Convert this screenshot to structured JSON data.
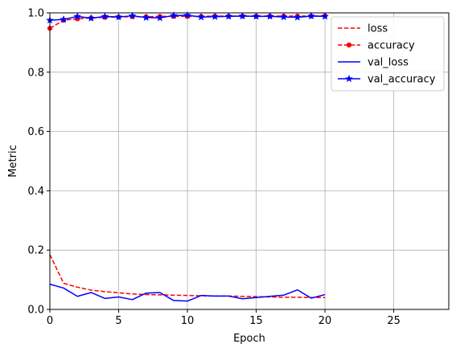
{
  "chart_data": {
    "type": "line",
    "xlabel": "Epoch",
    "ylabel": "Metric",
    "xlim": [
      0,
      29
    ],
    "ylim": [
      0,
      1
    ],
    "xticks": [
      0,
      5,
      10,
      15,
      20,
      25
    ],
    "yticks": [
      0.0,
      0.2,
      0.4,
      0.6,
      0.8,
      1.0
    ],
    "xtick_labels": [
      "0",
      "5",
      "10",
      "15",
      "20",
      "25"
    ],
    "ytick_labels": [
      "0.0",
      "0.2",
      "0.4",
      "0.6",
      "0.8",
      "1.0"
    ],
    "grid": true,
    "legend_position": "top-right",
    "x": [
      0,
      1,
      2,
      3,
      4,
      5,
      6,
      7,
      8,
      9,
      10,
      11,
      12,
      13,
      14,
      15,
      16,
      17,
      18,
      19,
      20
    ],
    "series": [
      {
        "name": "loss",
        "color": "#ff0000",
        "style": "dashed",
        "marker": "none",
        "values": [
          0.185,
          0.088,
          0.075,
          0.065,
          0.06,
          0.056,
          0.052,
          0.05,
          0.049,
          0.048,
          0.047,
          0.046,
          0.045,
          0.045,
          0.044,
          0.043,
          0.042,
          0.041,
          0.041,
          0.04,
          0.04
        ]
      },
      {
        "name": "accuracy",
        "color": "#ff0000",
        "style": "dashed",
        "marker": "dot",
        "values": [
          0.948,
          0.975,
          0.98,
          0.983,
          0.985,
          0.986,
          0.987,
          0.987,
          0.988,
          0.988,
          0.988,
          0.988,
          0.989,
          0.989,
          0.989,
          0.989,
          0.989,
          0.989,
          0.989,
          0.989,
          0.99
        ]
      },
      {
        "name": "val_loss",
        "color": "#0000ff",
        "style": "solid",
        "marker": "none",
        "values": [
          0.085,
          0.072,
          0.044,
          0.057,
          0.037,
          0.042,
          0.033,
          0.055,
          0.057,
          0.03,
          0.028,
          0.047,
          0.045,
          0.045,
          0.036,
          0.04,
          0.044,
          0.048,
          0.066,
          0.038,
          0.05
        ]
      },
      {
        "name": "val_accuracy",
        "color": "#0000ff",
        "style": "solid",
        "marker": "star",
        "values": [
          0.975,
          0.978,
          0.988,
          0.982,
          0.988,
          0.986,
          0.99,
          0.984,
          0.983,
          0.991,
          0.992,
          0.986,
          0.987,
          0.988,
          0.989,
          0.988,
          0.988,
          0.986,
          0.985,
          0.989,
          0.988
        ]
      }
    ]
  }
}
